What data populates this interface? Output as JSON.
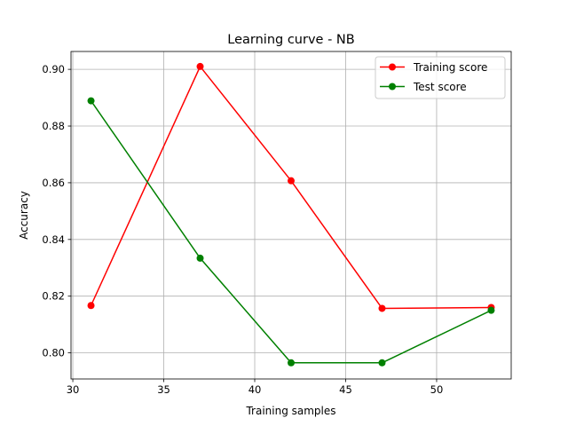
{
  "chart_data": {
    "type": "line",
    "title": "Learning curve - NB",
    "xlabel": "Training samples",
    "ylabel": "Accuracy",
    "xlim": [
      29.9,
      54.1
    ],
    "ylim": [
      0.7908,
      0.9063
    ],
    "xticks": [
      30,
      35,
      40,
      45,
      50
    ],
    "xtick_labels": [
      "30",
      "35",
      "40",
      "45",
      "50"
    ],
    "yticks": [
      0.8,
      0.82,
      0.84,
      0.86,
      0.88,
      0.9
    ],
    "ytick_labels": [
      "0.80",
      "0.82",
      "0.84",
      "0.86",
      "0.88",
      "0.90"
    ],
    "grid": true,
    "legend_position": "top-right",
    "x": [
      31,
      37,
      42,
      47,
      53
    ],
    "series": [
      {
        "name": "Training score",
        "color": "#ff0000",
        "marker": "circle",
        "values": [
          0.8167,
          0.901,
          0.8607,
          0.8157,
          0.816
        ]
      },
      {
        "name": "Test score",
        "color": "#008000",
        "marker": "circle",
        "values": [
          0.8889,
          0.8334,
          0.7965,
          0.7965,
          0.815
        ]
      }
    ]
  }
}
